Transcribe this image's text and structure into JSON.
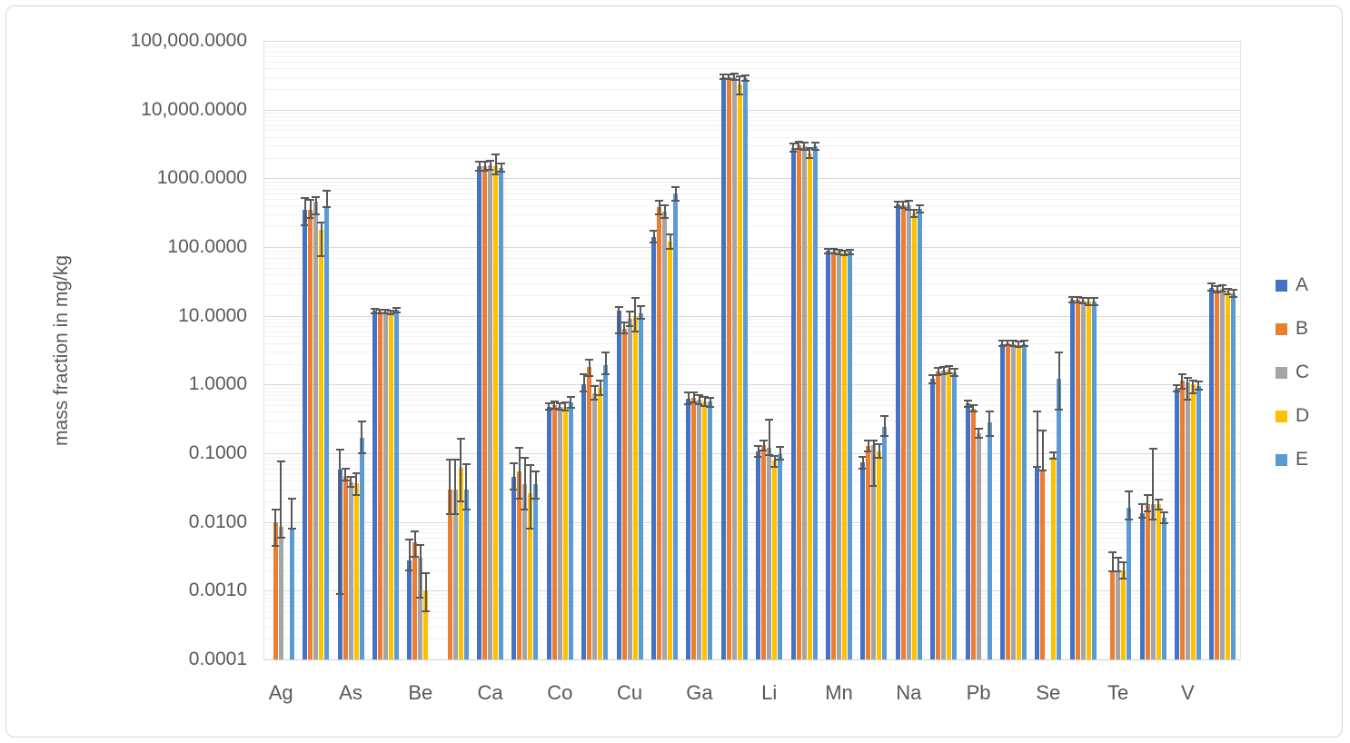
{
  "chart_data": {
    "type": "bar",
    "title": "",
    "ylabel": "mass fraction in mg/kg",
    "y_axis": {
      "scale": "log",
      "min": 0.0001,
      "max": 100000,
      "tick_labels": [
        "100,000.0000",
        "10,000.0000",
        "1000.0000",
        "100.0000",
        "10.0000",
        "1.0000",
        "0.1000",
        "0.0100",
        "0.0010",
        "0.0001"
      ],
      "grid": "major and minor log gridlines"
    },
    "legend": {
      "position": "right",
      "entries": [
        {
          "label": "A",
          "color": "#4472C4"
        },
        {
          "label": "B",
          "color": "#ED7D31"
        },
        {
          "label": "C",
          "color": "#A5A5A5"
        },
        {
          "label": "D",
          "color": "#FFC000"
        },
        {
          "label": "E",
          "color": "#5B9BD5"
        }
      ]
    },
    "series_names": [
      "A",
      "B",
      "C",
      "D",
      "E"
    ],
    "x_axis_note": "28 bar clusters; axis labels shown only under alternating clusters",
    "groups": [
      {
        "label": "Ag",
        "values": [
          null,
          0.01,
          0.0085,
          null,
          0.008
        ],
        "errors": [
          null,
          [
            0.0045,
            0.015
          ],
          [
            0.006,
            0.077
          ],
          null,
          [
            0.008,
            0.022
          ]
        ]
      },
      {
        "label": "",
        "values": [
          350,
          350,
          460,
          180,
          390
        ],
        "errors": [
          [
            210,
            520
          ],
          [
            265,
            490
          ],
          [
            300,
            540
          ],
          [
            75,
            230
          ],
          [
            385,
            660
          ]
        ]
      },
      {
        "label": "As",
        "values": [
          0.058,
          0.047,
          0.038,
          0.037,
          0.17
        ],
        "errors": [
          [
            0.0009,
            0.113
          ],
          [
            0.04,
            0.06
          ],
          [
            0.032,
            0.046
          ],
          [
            0.025,
            0.052
          ],
          [
            0.1,
            0.29
          ]
        ]
      },
      {
        "label": "",
        "values": [
          11.8,
          11.4,
          11.6,
          11.2,
          12.1
        ],
        "errors": [
          [
            11.0,
            12.6
          ],
          [
            10.8,
            12.1
          ],
          [
            11.0,
            12.3
          ],
          [
            10.5,
            12.0
          ],
          [
            11.3,
            13.0
          ]
        ]
      },
      {
        "label": "Be",
        "values": [
          0.0028,
          0.005,
          0.003,
          0.001,
          null
        ],
        "errors": [
          [
            0.002,
            0.0055
          ],
          [
            0.0031,
            0.0073
          ],
          [
            0.0008,
            0.0046
          ],
          [
            0.0005,
            0.0018
          ],
          null
        ]
      },
      {
        "label": "",
        "values": [
          null,
          0.03,
          0.03,
          0.062,
          0.03
        ],
        "errors": [
          null,
          [
            0.013,
            0.08
          ],
          [
            0.013,
            0.08
          ],
          [
            0.02,
            0.165
          ],
          [
            0.015,
            0.07
          ]
        ]
      },
      {
        "label": "Ca",
        "values": [
          1500,
          1500,
          1550,
          1500,
          1400
        ],
        "errors": [
          [
            1300,
            1750
          ],
          [
            1300,
            1750
          ],
          [
            1350,
            1800
          ],
          [
            1150,
            2250
          ],
          [
            1250,
            1650
          ]
        ]
      },
      {
        "label": "",
        "values": [
          0.046,
          0.055,
          0.036,
          0.026,
          0.036
        ],
        "errors": [
          [
            0.03,
            0.072
          ],
          [
            0.022,
            0.12
          ],
          [
            0.015,
            0.085
          ],
          [
            0.008,
            0.068
          ],
          [
            0.022,
            0.055
          ]
        ]
      },
      {
        "label": "Co",
        "values": [
          0.48,
          0.5,
          0.48,
          0.48,
          0.55
        ],
        "errors": [
          [
            0.43,
            0.54
          ],
          [
            0.45,
            0.56
          ],
          [
            0.43,
            0.54
          ],
          [
            0.42,
            0.55
          ],
          [
            0.46,
            0.67
          ]
        ]
      },
      {
        "label": "",
        "values": [
          1.0,
          1.8,
          0.75,
          0.9,
          1.9
        ],
        "errors": [
          [
            0.8,
            1.4
          ],
          [
            1.35,
            2.3
          ],
          [
            0.6,
            0.95
          ],
          [
            0.7,
            1.15
          ],
          [
            1.4,
            2.9
          ]
        ]
      },
      {
        "label": "Cu",
        "values": [
          12,
          6.5,
          9.0,
          10,
          11
        ],
        "errors": [
          [
            5.5,
            13.5
          ],
          [
            5.5,
            8.0
          ],
          [
            7.0,
            11.5
          ],
          [
            6.0,
            18.0
          ],
          [
            9.0,
            14.0
          ]
        ]
      },
      {
        "label": "",
        "values": [
          140,
          380,
          330,
          120,
          600
        ],
        "errors": [
          [
            115,
            175
          ],
          [
            300,
            480
          ],
          [
            265,
            400
          ],
          [
            95,
            155
          ],
          [
            480,
            740
          ]
        ]
      },
      {
        "label": "Ga",
        "values": [
          0.62,
          0.65,
          0.6,
          0.57,
          0.56
        ],
        "errors": [
          [
            0.52,
            0.76
          ],
          [
            0.55,
            0.78
          ],
          [
            0.52,
            0.7
          ],
          [
            0.49,
            0.66
          ],
          [
            0.48,
            0.65
          ]
        ]
      },
      {
        "label": "",
        "values": [
          30000,
          30000,
          30000,
          23000,
          28500
        ],
        "errors": [
          [
            27500,
            32500
          ],
          [
            27500,
            32500
          ],
          [
            27000,
            33000
          ],
          [
            16500,
            31000
          ],
          [
            26000,
            31500
          ]
        ]
      },
      {
        "label": "Li",
        "values": [
          0.107,
          0.131,
          0.119,
          0.079,
          0.097
        ],
        "errors": [
          [
            0.09,
            0.128
          ],
          [
            0.11,
            0.155
          ],
          [
            0.095,
            0.31
          ],
          [
            0.063,
            0.092
          ],
          [
            0.08,
            0.124
          ]
        ]
      },
      {
        "label": "",
        "values": [
          2800,
          3000,
          2950,
          2300,
          2950
        ],
        "errors": [
          [
            2450,
            3200
          ],
          [
            2650,
            3400
          ],
          [
            2600,
            3350
          ],
          [
            1950,
            2750
          ],
          [
            2600,
            3350
          ]
        ]
      },
      {
        "label": "Mn",
        "values": [
          88,
          86,
          85,
          83,
          85
        ],
        "errors": [
          [
            82,
            95
          ],
          [
            80,
            93
          ],
          [
            79,
            92
          ],
          [
            77,
            90
          ],
          [
            79,
            92
          ]
        ]
      },
      {
        "label": "",
        "values": [
          0.073,
          0.128,
          0.13,
          0.107,
          0.242
        ],
        "errors": [
          [
            0.06,
            0.089
          ],
          [
            0.105,
            0.155
          ],
          [
            0.033,
            0.155
          ],
          [
            0.085,
            0.135
          ],
          [
            0.178,
            0.345
          ]
        ]
      },
      {
        "label": "Na",
        "values": [
          420,
          410,
          400,
          310,
          360
        ],
        "errors": [
          [
            380,
            465
          ],
          [
            370,
            455
          ],
          [
            345,
            475
          ],
          [
            272,
            350
          ],
          [
            318,
            405
          ]
        ]
      },
      {
        "label": "",
        "values": [
          1.2,
          1.55,
          1.6,
          1.65,
          1.5
        ],
        "errors": [
          [
            1.05,
            1.37
          ],
          [
            1.38,
            1.75
          ],
          [
            1.42,
            1.8
          ],
          [
            1.45,
            1.88
          ],
          [
            1.33,
            1.7
          ]
        ]
      },
      {
        "label": "Pb",
        "values": [
          0.53,
          0.45,
          0.195,
          null,
          0.28
        ],
        "errors": [
          [
            0.47,
            0.59
          ],
          [
            0.41,
            0.5
          ],
          [
            0.17,
            0.225
          ],
          null,
          [
            0.18,
            0.4
          ]
        ]
      },
      {
        "label": "",
        "values": [
          3.9,
          4.0,
          3.9,
          3.8,
          3.9
        ],
        "errors": [
          [
            3.6,
            4.3
          ],
          [
            3.7,
            4.4
          ],
          [
            3.6,
            4.3
          ],
          [
            3.5,
            4.2
          ],
          [
            3.6,
            4.3
          ]
        ]
      },
      {
        "label": "Se",
        "values": [
          0.065,
          0.058,
          null,
          0.088,
          1.2
        ],
        "errors": [
          [
            0.064,
            0.4
          ],
          [
            0.056,
            0.215
          ],
          null,
          [
            0.084,
            0.102
          ],
          [
            0.43,
            2.9
          ]
        ]
      },
      {
        "label": "",
        "values": [
          17,
          17,
          16.5,
          16,
          16
        ],
        "errors": [
          [
            15.5,
            19
          ],
          [
            15.5,
            19
          ],
          [
            15,
            18.5
          ],
          [
            14.5,
            18
          ],
          [
            14.5,
            18
          ]
        ]
      },
      {
        "label": "Te",
        "values": [
          null,
          0.0019,
          0.0019,
          0.002,
          0.016
        ],
        "errors": [
          null,
          [
            0.0019,
            0.0036
          ],
          [
            0.0019,
            0.003
          ],
          [
            0.0015,
            0.0026
          ],
          [
            0.011,
            0.028
          ]
        ]
      },
      {
        "label": "",
        "values": [
          0.0134,
          0.018,
          0.0185,
          0.018,
          0.0115
        ],
        "errors": [
          [
            0.0114,
            0.0182
          ],
          [
            0.0145,
            0.025
          ],
          [
            0.011,
            0.115
          ],
          [
            0.015,
            0.021
          ],
          [
            0.0097,
            0.014
          ]
        ]
      },
      {
        "label": "V",
        "values": [
          0.88,
          1.13,
          1.07,
          1.0,
          0.94
        ],
        "errors": [
          [
            0.8,
            0.97
          ],
          [
            0.86,
            1.42
          ],
          [
            0.61,
            1.25
          ],
          [
            0.74,
            1.16
          ],
          [
            0.85,
            1.1
          ]
        ]
      },
      {
        "label": "",
        "values": [
          25.5,
          24,
          24.5,
          22.5,
          21
        ],
        "errors": [
          [
            23,
            30
          ],
          [
            22,
            27
          ],
          [
            22.5,
            27.5
          ],
          [
            20.5,
            25
          ],
          [
            19,
            24
          ]
        ]
      }
    ]
  }
}
